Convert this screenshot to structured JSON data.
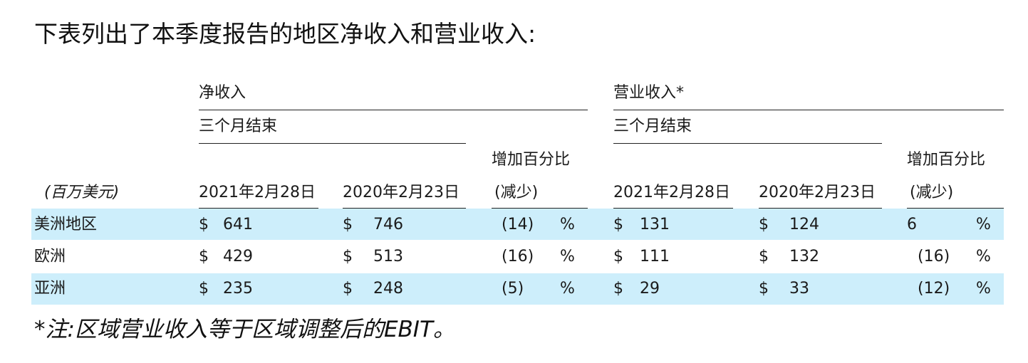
{
  "title": "下表列出了本季度报告的地区净收入和营业收入:",
  "units_label": "(百万美元)",
  "groups": {
    "net_revenue": {
      "label": "净收入",
      "period_label": "三个月结束",
      "col1": "2021年2月28日",
      "col2": "2020年2月23日",
      "pct_label_line1": "增加百分比",
      "pct_label_line2": "(减少)"
    },
    "operating_income": {
      "label": "营业收入*",
      "period_label": "三个月结束",
      "col1": "2021年2月28日",
      "col2": "2020年2月23日",
      "pct_label_line1": "增加百分比",
      "pct_label_line2": "(减少)"
    }
  },
  "currency_symbol": "$",
  "percent_symbol": "%",
  "rows": [
    {
      "region": "美洲地区",
      "net_2021": "641",
      "net_2020": "746",
      "net_pct": "(14)",
      "op_2021": "131",
      "op_2020": "124",
      "op_pct": "6"
    },
    {
      "region": "欧洲",
      "net_2021": "429",
      "net_2020": "513",
      "net_pct": "(16)",
      "op_2021": "111",
      "op_2020": "132",
      "op_pct": "(16)"
    },
    {
      "region": "亚洲",
      "net_2021": "235",
      "net_2020": "248",
      "net_pct": "(5)",
      "op_2021": "29",
      "op_2020": "33",
      "op_pct": "(12)"
    }
  ],
  "footnote": "*注:区域营业收入等于区域调整后的EBIT。",
  "colors": {
    "row_band": "#cdeefb",
    "text": "#1a1a1a",
    "rule": "#222222"
  }
}
